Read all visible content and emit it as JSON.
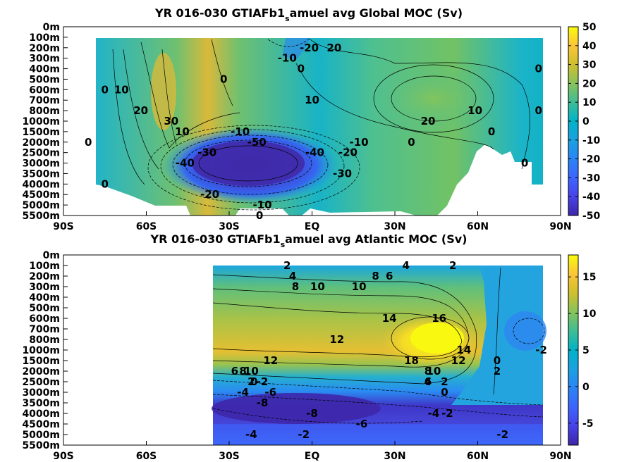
{
  "chart_data": [
    {
      "type": "heatmap",
      "title_pre": "YR 016-030 GTIAFb1",
      "title_sub": "s",
      "title_post": "amuel avg  Global MOC (Sv)",
      "x_ticks": [
        "90S",
        "60S",
        "30S",
        "EQ",
        "30N",
        "60N",
        "90N"
      ],
      "x_values": [
        -90,
        -60,
        -30,
        0,
        30,
        60,
        90
      ],
      "y_ticks": [
        "0m",
        "100m",
        "200m",
        "300m",
        "400m",
        "500m",
        "600m",
        "700m",
        "800m",
        "1000m",
        "1500m",
        "2000m",
        "2500m",
        "3000m",
        "3500m",
        "4000m",
        "4500m",
        "5000m",
        "5500m"
      ],
      "colorbar": {
        "min": -50,
        "max": 50,
        "ticks": [
          50,
          40,
          30,
          20,
          10,
          0,
          -10,
          -20,
          -30,
          -40,
          -50
        ]
      },
      "contour_labels": [
        {
          "text": "-20",
          "lat": -1,
          "depth": "200m"
        },
        {
          "text": "-10",
          "lat": -9,
          "depth": "300m"
        },
        {
          "text": "0",
          "lat": -4,
          "depth": "400m"
        },
        {
          "text": "20",
          "lat": 8,
          "depth": "200m"
        },
        {
          "text": "0",
          "lat": 82,
          "depth": "400m"
        },
        {
          "text": "0",
          "lat": -75,
          "depth": "600m"
        },
        {
          "text": "10",
          "lat": -69,
          "depth": "600m"
        },
        {
          "text": "0",
          "lat": -32,
          "depth": "500m"
        },
        {
          "text": "20",
          "lat": -62,
          "depth": "800m"
        },
        {
          "text": "10",
          "lat": 0,
          "depth": "700m"
        },
        {
          "text": "10",
          "lat": 59,
          "depth": "800m"
        },
        {
          "text": "20",
          "lat": 42,
          "depth": "1000m"
        },
        {
          "text": "0",
          "lat": 82,
          "depth": "800m"
        },
        {
          "text": "30",
          "lat": -51,
          "depth": "1000m"
        },
        {
          "text": "10",
          "lat": -47,
          "depth": "1500m"
        },
        {
          "text": "-10",
          "lat": -26,
          "depth": "1500m"
        },
        {
          "text": "0",
          "lat": -81,
          "depth": "2000m"
        },
        {
          "text": "-50",
          "lat": -20,
          "depth": "2000m"
        },
        {
          "text": "-10",
          "lat": 17,
          "depth": "2000m"
        },
        {
          "text": "0",
          "lat": 36,
          "depth": "2000m"
        },
        {
          "text": "0",
          "lat": 65,
          "depth": "1500m"
        },
        {
          "text": "-20",
          "lat": 13,
          "depth": "2500m"
        },
        {
          "text": "-40",
          "lat": 1,
          "depth": "2500m"
        },
        {
          "text": "-30",
          "lat": -38,
          "depth": "2500m"
        },
        {
          "text": "-40",
          "lat": -46,
          "depth": "3000m"
        },
        {
          "text": "-30",
          "lat": 11,
          "depth": "3500m"
        },
        {
          "text": "0",
          "lat": 77,
          "depth": "3000m"
        },
        {
          "text": "0",
          "lat": -75,
          "depth": "4000m"
        },
        {
          "text": "-20",
          "lat": -37,
          "depth": "4500m"
        },
        {
          "text": "-10",
          "lat": -18,
          "depth": "5000m"
        },
        {
          "text": "0",
          "lat": -19,
          "depth": "5500m"
        }
      ]
    },
    {
      "type": "heatmap",
      "title_pre": "YR 016-030 GTIAFb1",
      "title_sub": "s",
      "title_post": "amuel avg  Atlantic MOC (Sv)",
      "x_ticks": [
        "90S",
        "60S",
        "30S",
        "EQ",
        "30N",
        "60N",
        "90N"
      ],
      "x_values": [
        -90,
        -60,
        -30,
        0,
        30,
        60,
        90
      ],
      "y_ticks": [
        "0m",
        "100m",
        "200m",
        "300m",
        "400m",
        "500m",
        "600m",
        "700m",
        "800m",
        "1000m",
        "1500m",
        "2000m",
        "2500m",
        "3000m",
        "3500m",
        "4000m",
        "4500m",
        "5000m",
        "5500m"
      ],
      "colorbar": {
        "min": -8,
        "max": 18,
        "ticks": [
          15,
          10,
          5,
          0,
          -5
        ]
      },
      "contour_labels": [
        {
          "text": "2",
          "lat": -9,
          "depth": "100m"
        },
        {
          "text": "4",
          "lat": -7,
          "depth": "200m"
        },
        {
          "text": "8",
          "lat": -6,
          "depth": "300m"
        },
        {
          "text": "10",
          "lat": 2,
          "depth": "300m"
        },
        {
          "text": "10",
          "lat": 17,
          "depth": "300m"
        },
        {
          "text": "8",
          "lat": 23,
          "depth": "200m"
        },
        {
          "text": "6",
          "lat": 28,
          "depth": "200m"
        },
        {
          "text": "4",
          "lat": 34,
          "depth": "100m"
        },
        {
          "text": "2",
          "lat": 51,
          "depth": "100m"
        },
        {
          "text": "14",
          "lat": 28,
          "depth": "600m"
        },
        {
          "text": "16",
          "lat": 46,
          "depth": "600m"
        },
        {
          "text": "12",
          "lat": 9,
          "depth": "800m"
        },
        {
          "text": "18",
          "lat": 36,
          "depth": "1500m"
        },
        {
          "text": "14",
          "lat": 55,
          "depth": "1000m"
        },
        {
          "text": "12",
          "lat": 53,
          "depth": "1500m"
        },
        {
          "text": "12",
          "lat": -15,
          "depth": "1500m"
        },
        {
          "text": "10",
          "lat": -22,
          "depth": "2000m"
        },
        {
          "text": "10",
          "lat": 44,
          "depth": "2000m"
        },
        {
          "text": "8",
          "lat": 42,
          "depth": "2000m"
        },
        {
          "text": "6",
          "lat": 42,
          "depth": "2500m"
        },
        {
          "text": "4",
          "lat": 42,
          "depth": "2500m"
        },
        {
          "text": "0",
          "lat": 67,
          "depth": "1500m"
        },
        {
          "text": "-2",
          "lat": 83,
          "depth": "1000m"
        },
        {
          "text": "2",
          "lat": 67,
          "depth": "2000m"
        },
        {
          "text": "8",
          "lat": -25,
          "depth": "2000m"
        },
        {
          "text": "6",
          "lat": -28,
          "depth": "2000m"
        },
        {
          "text": "2",
          "lat": -22,
          "depth": "2500m"
        },
        {
          "text": "0",
          "lat": -21,
          "depth": "2500m"
        },
        {
          "text": "-2",
          "lat": -18,
          "depth": "2500m"
        },
        {
          "text": "2",
          "lat": 48,
          "depth": "2500m"
        },
        {
          "text": "-4",
          "lat": -25,
          "depth": "3000m"
        },
        {
          "text": "-6",
          "lat": -15,
          "depth": "3000m"
        },
        {
          "text": "-8",
          "lat": -18,
          "depth": "3500m"
        },
        {
          "text": "0",
          "lat": 48,
          "depth": "3000m"
        },
        {
          "text": "-2",
          "lat": 49,
          "depth": "4000m"
        },
        {
          "text": "-4",
          "lat": 44,
          "depth": "4000m"
        },
        {
          "text": "-8",
          "lat": 0,
          "depth": "4000m"
        },
        {
          "text": "-6",
          "lat": 18,
          "depth": "4500m"
        },
        {
          "text": "-4",
          "lat": -22,
          "depth": "5000m"
        },
        {
          "text": "-2",
          "lat": -3,
          "depth": "5000m"
        },
        {
          "text": "-2",
          "lat": 69,
          "depth": "5000m"
        }
      ]
    }
  ]
}
